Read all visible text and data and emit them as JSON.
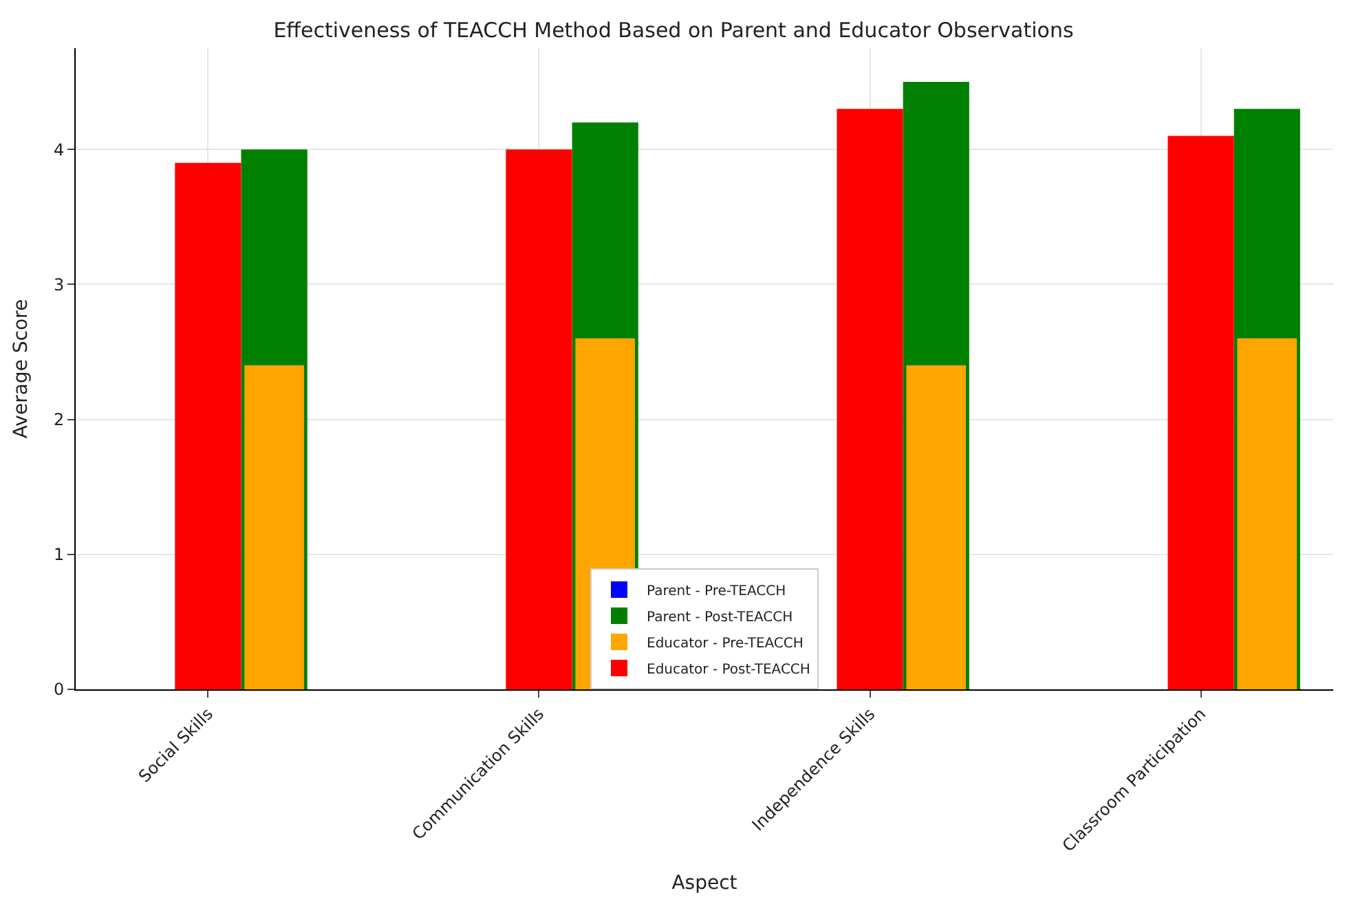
{
  "chart_data": {
    "type": "bar",
    "title": "Effectiveness of TEACCH Method Based on Parent and Educator Observations",
    "xlabel": "Aspect",
    "ylabel": "Average Score",
    "categories": [
      "Social Skills",
      "Communication Skills",
      "Independence Skills",
      "Classroom Participation"
    ],
    "series": [
      {
        "name": "Parent - Pre-TEACCH",
        "color": "#0000ff",
        "values": [
          null,
          null,
          null,
          null
        ]
      },
      {
        "name": "Parent - Post-TEACCH",
        "color": "#008000",
        "values": [
          4.0,
          4.2,
          4.5,
          4.3
        ]
      },
      {
        "name": "Educator - Pre-TEACCH",
        "color": "#ffa500",
        "values": [
          2.4,
          2.6,
          2.4,
          2.6
        ]
      },
      {
        "name": "Educator - Post-TEACCH",
        "color": "#ff0000",
        "values": [
          3.9,
          4.0,
          4.3,
          4.1
        ]
      }
    ],
    "ylim": [
      0,
      4.75
    ],
    "yticks": [
      0,
      1,
      2,
      3,
      4
    ],
    "grid": true,
    "legend": "bottom"
  }
}
